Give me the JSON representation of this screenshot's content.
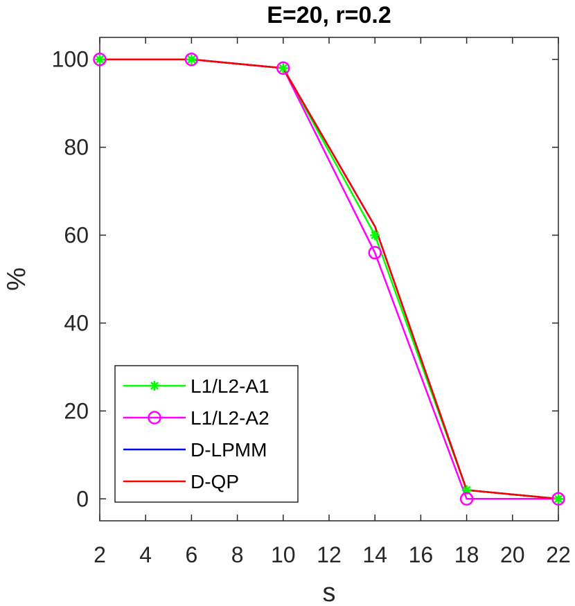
{
  "chart_data": {
    "type": "line",
    "title": "E=20, r=0.2",
    "xlabel": "s",
    "ylabel": "%",
    "xlim": [
      2,
      22
    ],
    "ylim": [
      -5,
      105
    ],
    "xticks": [
      2,
      4,
      6,
      8,
      10,
      12,
      14,
      16,
      18,
      20,
      22
    ],
    "yticks": [
      0,
      20,
      40,
      60,
      80,
      100
    ],
    "grid": false,
    "legend_position": "bottom-left",
    "x": [
      2,
      6,
      10,
      14,
      18,
      22
    ],
    "series": [
      {
        "name": "L1/L2-A1",
        "values": [
          100,
          100,
          98,
          60,
          2,
          0
        ],
        "color": "#00ff00",
        "marker": "asterisk"
      },
      {
        "name": "L1/L2-A2",
        "values": [
          100,
          100,
          98,
          56,
          0,
          0
        ],
        "color": "#ff00ff",
        "marker": "circle"
      },
      {
        "name": "D-LPMM",
        "values": [
          100,
          100,
          98,
          62,
          2,
          0
        ],
        "color": "#0000ff",
        "marker": "none"
      },
      {
        "name": "D-QP",
        "values": [
          100,
          100,
          98,
          62,
          2,
          0
        ],
        "color": "#ff0000",
        "marker": "none"
      }
    ]
  }
}
